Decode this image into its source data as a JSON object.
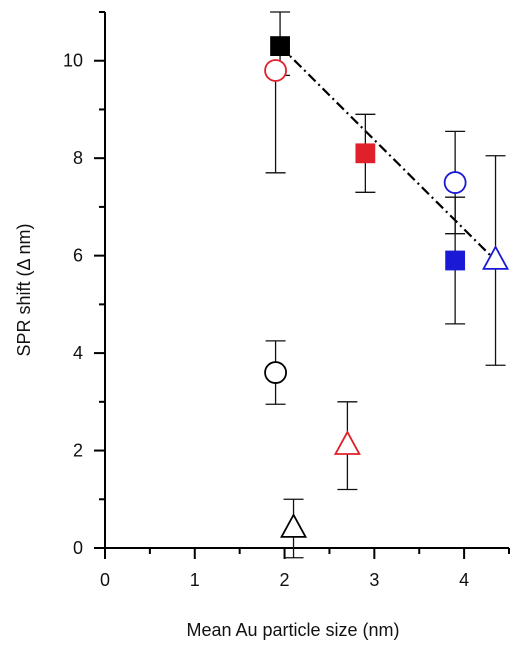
{
  "chart_data": {
    "type": "scatter",
    "xlabel": "Mean Au particle size (nm)",
    "ylabel": "SPR shift (Δ nm)",
    "xlim": [
      0,
      4.5
    ],
    "ylim": [
      0,
      11
    ],
    "xticks": [
      0,
      1,
      2,
      3,
      4
    ],
    "yticks": [
      0,
      2,
      4,
      6,
      8,
      10
    ],
    "grid": false,
    "legend": "none",
    "points": [
      {
        "x": 1.95,
        "y": 10.3,
        "err_low": 0.6,
        "err_high": 0.7,
        "marker": "square",
        "filled": true,
        "color": "#000000"
      },
      {
        "x": 1.9,
        "y": 9.8,
        "err_low": 2.1,
        "err_high": 0.0,
        "marker": "circle",
        "filled": false,
        "color": "#e0202a"
      },
      {
        "x": 2.9,
        "y": 8.1,
        "err_low": 0.8,
        "err_high": 0.8,
        "marker": "square",
        "filled": true,
        "color": "#e0202a"
      },
      {
        "x": 3.9,
        "y": 7.5,
        "err_low": 1.05,
        "err_high": 1.05,
        "marker": "circle",
        "filled": false,
        "color": "#1a1ad6"
      },
      {
        "x": 3.9,
        "y": 5.9,
        "err_low": 1.3,
        "err_high": 1.3,
        "marker": "square",
        "filled": true,
        "color": "#1a1ad6"
      },
      {
        "x": 4.35,
        "y": 5.9,
        "err_low": 2.15,
        "err_high": 2.15,
        "marker": "triangle",
        "filled": false,
        "color": "#1a1ad6"
      },
      {
        "x": 1.9,
        "y": 3.6,
        "err_low": 0.65,
        "err_high": 0.65,
        "marker": "circle",
        "filled": false,
        "color": "#000000"
      },
      {
        "x": 2.7,
        "y": 2.1,
        "err_low": 0.9,
        "err_high": 0.9,
        "marker": "triangle",
        "filled": false,
        "color": "#e0202a"
      },
      {
        "x": 2.1,
        "y": 0.4,
        "err_low": 0.6,
        "err_high": 0.6,
        "marker": "triangle",
        "filled": false,
        "color": "#000000"
      }
    ],
    "trend_line": {
      "x": [
        1.95,
        4.35
      ],
      "y": [
        10.3,
        5.9
      ],
      "style": "dash-dot",
      "color": "#000000"
    }
  }
}
